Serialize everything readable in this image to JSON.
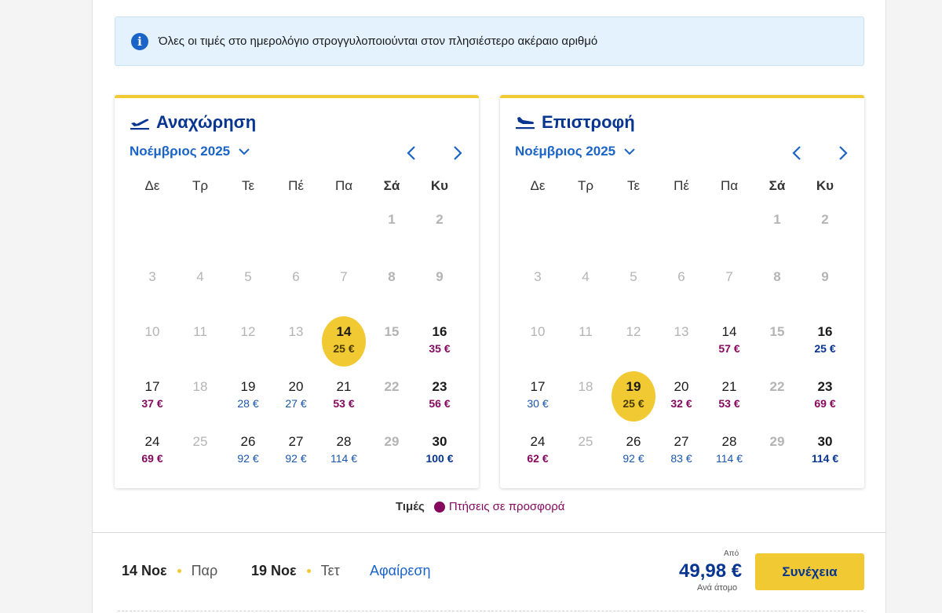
{
  "info": {
    "icon": "info-icon",
    "text": "Όλες οι τιμές στο ημερολόγιο στρογγυλοποιούνται στον πλησιέστερο ακέραιο αριθμό"
  },
  "weekdays": [
    "Δε",
    "Τρ",
    "Τε",
    "Πέ",
    "Πα",
    "Σά",
    "Κυ"
  ],
  "departure": {
    "title": "Αναχώρηση",
    "icon": "plane-takeoff-icon",
    "month": "Νοέμβριος 2025",
    "days": [
      {
        "n": "1",
        "price": "",
        "state": "disabled"
      },
      {
        "n": "2",
        "price": "",
        "state": "disabled"
      },
      {
        "n": "3",
        "price": "",
        "state": "disabled"
      },
      {
        "n": "4",
        "price": "",
        "state": "disabled"
      },
      {
        "n": "5",
        "price": "",
        "state": "disabled"
      },
      {
        "n": "6",
        "price": "",
        "state": "disabled"
      },
      {
        "n": "7",
        "price": "",
        "state": "disabled"
      },
      {
        "n": "8",
        "price": "",
        "state": "disabled"
      },
      {
        "n": "9",
        "price": "",
        "state": "disabled"
      },
      {
        "n": "10",
        "price": "",
        "state": "disabled"
      },
      {
        "n": "11",
        "price": "",
        "state": "disabled"
      },
      {
        "n": "12",
        "price": "",
        "state": "disabled"
      },
      {
        "n": "13",
        "price": "",
        "state": "disabled"
      },
      {
        "n": "14",
        "price": "25 €",
        "state": "selected",
        "color": "b"
      },
      {
        "n": "15",
        "price": "",
        "state": "disabled"
      },
      {
        "n": "16",
        "price": "35 €",
        "state": "available",
        "color": "p"
      },
      {
        "n": "17",
        "price": "37 €",
        "state": "available",
        "color": "p"
      },
      {
        "n": "18",
        "price": "",
        "state": "disabled"
      },
      {
        "n": "19",
        "price": "28 €",
        "state": "available",
        "color": "b"
      },
      {
        "n": "20",
        "price": "27 €",
        "state": "available",
        "color": "b"
      },
      {
        "n": "21",
        "price": "53 €",
        "state": "available",
        "color": "p"
      },
      {
        "n": "22",
        "price": "",
        "state": "disabled"
      },
      {
        "n": "23",
        "price": "56 €",
        "state": "available",
        "color": "p"
      },
      {
        "n": "24",
        "price": "69 €",
        "state": "available",
        "color": "p"
      },
      {
        "n": "25",
        "price": "",
        "state": "disabled"
      },
      {
        "n": "26",
        "price": "92 €",
        "state": "available",
        "color": "b"
      },
      {
        "n": "27",
        "price": "92 €",
        "state": "available",
        "color": "b"
      },
      {
        "n": "28",
        "price": "114 €",
        "state": "available",
        "color": "b"
      },
      {
        "n": "29",
        "price": "",
        "state": "disabled"
      },
      {
        "n": "30",
        "price": "100 €",
        "state": "available",
        "color": "b"
      }
    ]
  },
  "return": {
    "title": "Επιστροφή",
    "icon": "plane-landing-icon",
    "month": "Νοέμβριος 2025",
    "days": [
      {
        "n": "1",
        "price": "",
        "state": "disabled"
      },
      {
        "n": "2",
        "price": "",
        "state": "disabled"
      },
      {
        "n": "3",
        "price": "",
        "state": "disabled"
      },
      {
        "n": "4",
        "price": "",
        "state": "disabled"
      },
      {
        "n": "5",
        "price": "",
        "state": "disabled"
      },
      {
        "n": "6",
        "price": "",
        "state": "disabled"
      },
      {
        "n": "7",
        "price": "",
        "state": "disabled"
      },
      {
        "n": "8",
        "price": "",
        "state": "disabled"
      },
      {
        "n": "9",
        "price": "",
        "state": "disabled"
      },
      {
        "n": "10",
        "price": "",
        "state": "disabled"
      },
      {
        "n": "11",
        "price": "",
        "state": "disabled"
      },
      {
        "n": "12",
        "price": "",
        "state": "disabled"
      },
      {
        "n": "13",
        "price": "",
        "state": "disabled"
      },
      {
        "n": "14",
        "price": "57 €",
        "state": "available",
        "color": "p"
      },
      {
        "n": "15",
        "price": "",
        "state": "disabled"
      },
      {
        "n": "16",
        "price": "25 €",
        "state": "available",
        "color": "b"
      },
      {
        "n": "17",
        "price": "30 €",
        "state": "available",
        "color": "b"
      },
      {
        "n": "18",
        "price": "",
        "state": "disabled"
      },
      {
        "n": "19",
        "price": "25 €",
        "state": "selected",
        "color": "b"
      },
      {
        "n": "20",
        "price": "32 €",
        "state": "available",
        "color": "p"
      },
      {
        "n": "21",
        "price": "53 €",
        "state": "available",
        "color": "p"
      },
      {
        "n": "22",
        "price": "",
        "state": "disabled"
      },
      {
        "n": "23",
        "price": "69 €",
        "state": "available",
        "color": "p"
      },
      {
        "n": "24",
        "price": "62 €",
        "state": "available",
        "color": "p"
      },
      {
        "n": "25",
        "price": "",
        "state": "disabled"
      },
      {
        "n": "26",
        "price": "92 €",
        "state": "available",
        "color": "b"
      },
      {
        "n": "27",
        "price": "83 €",
        "state": "available",
        "color": "b"
      },
      {
        "n": "28",
        "price": "114 €",
        "state": "available",
        "color": "b"
      },
      {
        "n": "29",
        "price": "",
        "state": "disabled"
      },
      {
        "n": "30",
        "price": "114 €",
        "state": "available",
        "color": "b"
      }
    ]
  },
  "legend": {
    "label": "Τιμές",
    "offer": "Πτήσεις σε προσφορά"
  },
  "summary": {
    "depart_date": "14 Νοε",
    "depart_weekday": "Παρ",
    "return_date": "19 Νοε",
    "return_weekday": "Τετ",
    "remove": "Αφαίρεση",
    "from_label": "Από",
    "total": "49,98 €",
    "per_person": "Ανά άτομο",
    "continue": "Συνέχεια"
  },
  "colors": {
    "accent_yellow": "#f1c933",
    "navy": "#073590",
    "link_blue": "#1a63c7",
    "offer_purple": "#86095f",
    "info_bg": "#e4f2fd"
  }
}
